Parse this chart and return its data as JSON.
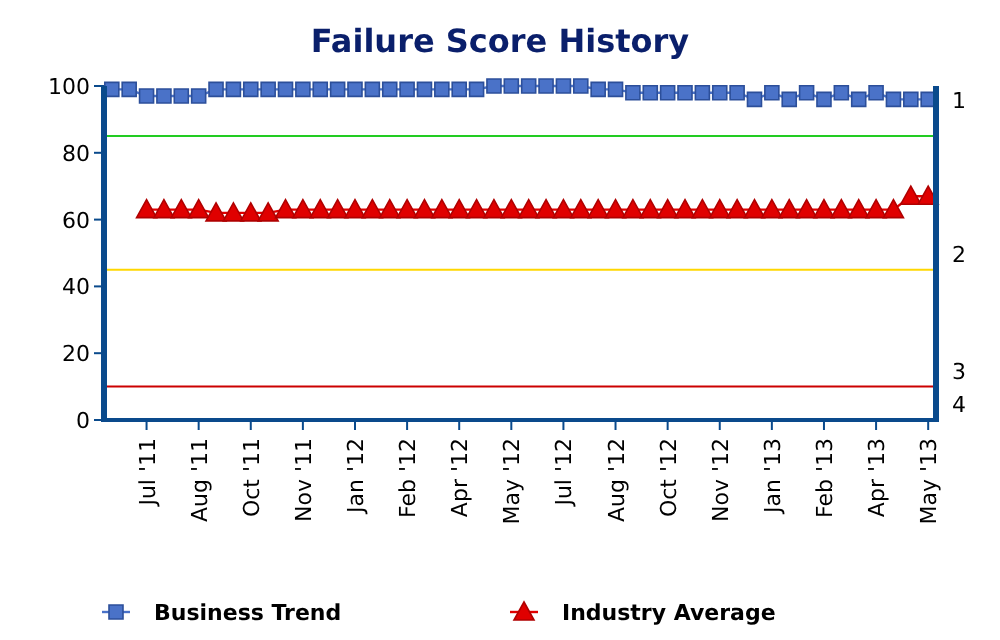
{
  "chart_data": {
    "type": "line",
    "title": "Failure Score History",
    "categories": [
      null,
      null,
      "Jul '11",
      null,
      null,
      "Aug '11",
      null,
      null,
      "Oct '11",
      null,
      null,
      "Nov '11",
      null,
      null,
      "Jan '12",
      null,
      null,
      "Feb '12",
      null,
      null,
      "Apr '12",
      null,
      null,
      "May '12",
      null,
      null,
      "Jul '12",
      null,
      null,
      "Aug '12",
      null,
      null,
      "Oct '12",
      null,
      null,
      "Nov '12",
      null,
      null,
      "Jan '13",
      null,
      null,
      "Feb '13",
      null,
      null,
      "Apr '13",
      null,
      null,
      "May '13"
    ],
    "series": [
      {
        "name": "Business Trend",
        "color": "#4a72c8",
        "marker": "square",
        "values": [
          99,
          99,
          97,
          97,
          97,
          97,
          99,
          99,
          99,
          99,
          99,
          99,
          99,
          99,
          99,
          99,
          99,
          99,
          99,
          99,
          99,
          99,
          100,
          100,
          100,
          100,
          100,
          100,
          99,
          99,
          98,
          98,
          98,
          98,
          98,
          98,
          98,
          96,
          98,
          96,
          98,
          96,
          98,
          96,
          98,
          96,
          96,
          96
        ]
      },
      {
        "name": "Industry Average",
        "color": "#e00000",
        "marker": "triangle",
        "values": [
          null,
          null,
          63,
          63,
          63,
          63,
          62,
          62,
          62,
          62,
          63,
          63,
          63,
          63,
          63,
          63,
          63,
          63,
          63,
          63,
          63,
          63,
          63,
          63,
          63,
          63,
          63,
          63,
          63,
          63,
          63,
          63,
          63,
          63,
          63,
          63,
          63,
          63,
          63,
          63,
          63,
          63,
          63,
          63,
          63,
          63,
          67,
          67
        ]
      }
    ],
    "ylim": [
      0,
      100
    ],
    "yticks": [
      0,
      20,
      40,
      60,
      80,
      100
    ],
    "grid": false,
    "legend": "bottom",
    "line_style": "solid",
    "ref_lines": [
      {
        "axis": "y",
        "value": 85,
        "color": "#22cc22"
      },
      {
        "axis": "y",
        "value": 45,
        "color": "#ffd700"
      },
      {
        "axis": "y",
        "value": 10,
        "color": "#cc0000"
      }
    ],
    "annotations": [
      "1",
      "2",
      "3",
      "4"
    ]
  }
}
